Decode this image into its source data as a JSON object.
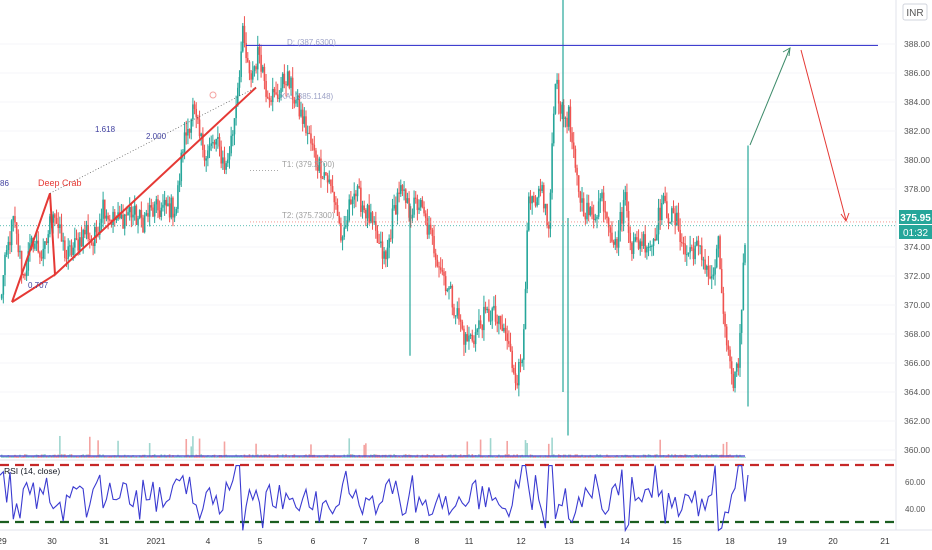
{
  "currency": "INR",
  "price_badge": {
    "price": "375.95",
    "countdown": "01:32"
  },
  "colors": {
    "up": "#26a69a",
    "down": "#ef5350",
    "line": "#3f3fcf",
    "rsi": "#3b3bd1",
    "red_dash": "#c62828",
    "green_dash": "#1b5e20",
    "pattern": "#e53935",
    "target_up": "#3d8b6a",
    "target_down": "#e53935"
  },
  "chart_data": {
    "type": "candlestick",
    "y_axis": {
      "range": [
        359,
        391.5
      ],
      "ticks": [
        360,
        362,
        364,
        366,
        368,
        370,
        372,
        374,
        376,
        378,
        380,
        382,
        384,
        386,
        388
      ]
    },
    "x_axis": {
      "ticks": [
        "29",
        "30",
        "31",
        "2021",
        "4",
        "5",
        "6",
        "7",
        "8",
        "11",
        "12",
        "13",
        "14",
        "15",
        "18",
        "19",
        "20",
        "21"
      ]
    },
    "horizontal_level": 387.9,
    "current_price": 375.95,
    "pattern": {
      "name": "Deep Crab",
      "points": [
        [
          0,
          370.2
        ],
        [
          34,
          377.7
        ],
        [
          55,
          372.1
        ],
        [
          185,
          385.0
        ]
      ],
      "ratios": [
        "1.618",
        "2.000",
        "0.707"
      ],
      "left_value": "86"
    },
    "annotations": {
      "d_label": "D: (387.6300)",
      "xa_label": "XA: (385.1148)",
      "t1": "T1: (379.2700)",
      "t2": "T2: (375.7300)"
    },
    "rsi": {
      "label": "RSI (14, close)",
      "ticks": [
        "60.00",
        "40.00"
      ],
      "overbought": 70,
      "oversold": 30
    },
    "guide_points": [
      {
        "x": 0,
        "y": 370.2
      },
      {
        "x": 4,
        "y": 373.5
      },
      {
        "x": 8,
        "y": 375.8
      },
      {
        "x": 14,
        "y": 372.0
      },
      {
        "x": 20,
        "y": 374.5
      },
      {
        "x": 26,
        "y": 373.2
      },
      {
        "x": 32,
        "y": 376.8
      },
      {
        "x": 36,
        "y": 374.8
      },
      {
        "x": 40,
        "y": 373.3
      },
      {
        "x": 46,
        "y": 374.2
      },
      {
        "x": 52,
        "y": 375.2
      },
      {
        "x": 56,
        "y": 374.2
      },
      {
        "x": 62,
        "y": 377.0
      },
      {
        "x": 66,
        "y": 376.0
      },
      {
        "x": 72,
        "y": 375.8
      },
      {
        "x": 78,
        "y": 376.5
      },
      {
        "x": 82,
        "y": 376.0
      },
      {
        "x": 86,
        "y": 375.8
      },
      {
        "x": 90,
        "y": 376.4
      },
      {
        "x": 94,
        "y": 376.5
      },
      {
        "x": 100,
        "y": 376.7
      },
      {
        "x": 106,
        "y": 376.7
      },
      {
        "x": 110,
        "y": 381.0
      },
      {
        "x": 116,
        "y": 383.5
      },
      {
        "x": 120,
        "y": 381.5
      },
      {
        "x": 124,
        "y": 380.5
      },
      {
        "x": 130,
        "y": 381.2
      },
      {
        "x": 136,
        "y": 379.5
      },
      {
        "x": 140,
        "y": 382.0
      },
      {
        "x": 146,
        "y": 388.5
      },
      {
        "x": 150,
        "y": 385.5
      },
      {
        "x": 156,
        "y": 387.5
      },
      {
        "x": 160,
        "y": 385.0
      },
      {
        "x": 166,
        "y": 384.2
      },
      {
        "x": 172,
        "y": 385.8
      },
      {
        "x": 178,
        "y": 384.0
      },
      {
        "x": 184,
        "y": 382.2
      },
      {
        "x": 190,
        "y": 380.0
      },
      {
        "x": 196,
        "y": 379.0
      },
      {
        "x": 202,
        "y": 377.0
      },
      {
        "x": 206,
        "y": 374.0
      },
      {
        "x": 212,
        "y": 378.0
      },
      {
        "x": 218,
        "y": 377.0
      },
      {
        "x": 222,
        "y": 376.0
      },
      {
        "x": 228,
        "y": 374.0
      },
      {
        "x": 232,
        "y": 373.0
      },
      {
        "x": 236,
        "y": 376.0
      },
      {
        "x": 240,
        "y": 378.0
      },
      {
        "x": 246,
        "y": 376.5
      },
      {
        "x": 252,
        "y": 377.0
      },
      {
        "x": 258,
        "y": 375.0
      },
      {
        "x": 264,
        "y": 373.0
      },
      {
        "x": 270,
        "y": 371.0
      },
      {
        "x": 276,
        "y": 369.0
      },
      {
        "x": 280,
        "y": 367.5
      },
      {
        "x": 286,
        "y": 368.0
      },
      {
        "x": 290,
        "y": 369.0
      },
      {
        "x": 296,
        "y": 369.5
      },
      {
        "x": 300,
        "y": 368.5
      },
      {
        "x": 304,
        "y": 368.0
      },
      {
        "x": 308,
        "y": 366.0
      },
      {
        "x": 311,
        "y": 365.0
      },
      {
        "x": 314,
        "y": 366.5
      },
      {
        "x": 318,
        "y": 377.0
      },
      {
        "x": 322,
        "y": 376.5
      },
      {
        "x": 326,
        "y": 378.0
      },
      {
        "x": 330,
        "y": 375.0
      },
      {
        "x": 334,
        "y": 386.0
      },
      {
        "x": 338,
        "y": 383.0
      },
      {
        "x": 342,
        "y": 383.0
      },
      {
        "x": 346,
        "y": 379.0
      },
      {
        "x": 350,
        "y": 377.0
      },
      {
        "x": 356,
        "y": 376.0
      },
      {
        "x": 362,
        "y": 377.5
      },
      {
        "x": 366,
        "y": 376.0
      },
      {
        "x": 370,
        "y": 374.0
      },
      {
        "x": 376,
        "y": 377.5
      },
      {
        "x": 380,
        "y": 374.0
      },
      {
        "x": 386,
        "y": 374.5
      },
      {
        "x": 392,
        "y": 374.2
      },
      {
        "x": 398,
        "y": 377.0
      },
      {
        "x": 404,
        "y": 376.0
      },
      {
        "x": 408,
        "y": 375.5
      },
      {
        "x": 412,
        "y": 373.5
      },
      {
        "x": 418,
        "y": 374.0
      },
      {
        "x": 424,
        "y": 373.0
      },
      {
        "x": 428,
        "y": 371.5
      },
      {
        "x": 432,
        "y": 374.0
      },
      {
        "x": 436,
        "y": 368.0
      },
      {
        "x": 440,
        "y": 364.5
      },
      {
        "x": 444,
        "y": 366.0
      },
      {
        "x": 448,
        "y": 374.5
      }
    ]
  }
}
